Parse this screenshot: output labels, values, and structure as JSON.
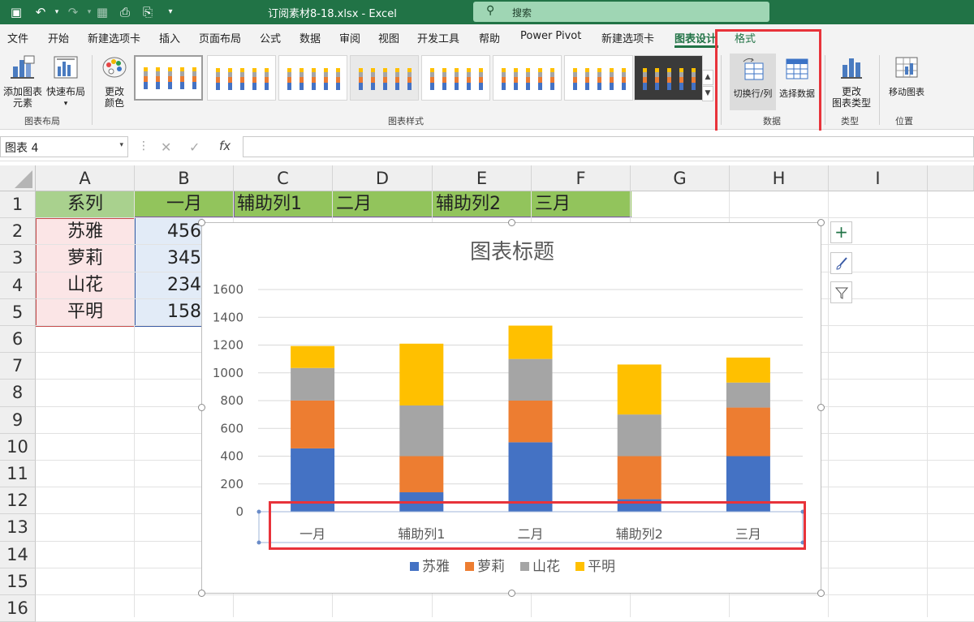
{
  "titlebar": {
    "doc_title": "订阅素材8-18.xlsx  -  Excel",
    "search_placeholder": "搜索",
    "quick_icons": [
      "save-icon",
      "undo-icon",
      "redo-icon",
      "form-icon",
      "print-preview-icon",
      "customize-icon"
    ]
  },
  "menu": {
    "items": [
      "文件",
      "开始",
      "新建选项卡",
      "插入",
      "页面布局",
      "公式",
      "数据",
      "审阅",
      "视图",
      "开发工具",
      "帮助",
      "Power Pivot",
      "新建选项卡",
      "图表设计",
      "格式"
    ],
    "active_index": 13
  },
  "ribbon": {
    "add_element": "添加图表\n元素",
    "quick_layout": "快速布局",
    "change_colors": "更改\n颜色",
    "group_layout": "图表布局",
    "group_styles": "图表样式",
    "switch_row_col": "切换行/列",
    "select_data": "选择数据",
    "group_data": "数据",
    "change_type": "更改\n图表类型",
    "group_type": "类型",
    "move_chart": "移动图表",
    "group_location": "位置"
  },
  "formula_bar": {
    "name_box": "图表 4",
    "cancel_symbol": "✕",
    "enter_symbol": "✓",
    "fx": "fx",
    "value": ""
  },
  "sheet": {
    "columns": [
      "A",
      "B",
      "C",
      "D",
      "E",
      "F",
      "G",
      "H",
      "I"
    ],
    "rows": [
      "1",
      "2",
      "3",
      "4",
      "5",
      "6",
      "7",
      "8",
      "9",
      "10",
      "11",
      "12",
      "13",
      "14",
      "15",
      "16"
    ],
    "header_row": [
      "系列",
      "一月",
      "辅助列1",
      "二月",
      "辅助列2",
      "三月"
    ],
    "names": [
      "苏雅",
      "萝莉",
      "山花",
      "平明"
    ],
    "b_values": [
      "456",
      "345",
      "234",
      "158"
    ],
    "colors": {
      "header_bg": "#92c45c",
      "names_bg": "#fbe5e6",
      "values_bg": "#e2ebf7"
    }
  },
  "chart_data": {
    "type": "bar",
    "stacked": true,
    "title": "图表标题",
    "categories": [
      "一月",
      "辅助列1",
      "二月",
      "辅助列2",
      "三月"
    ],
    "series": [
      {
        "name": "苏雅",
        "color": "#4472c4",
        "values": [
          456,
          140,
          500,
          90,
          400
        ]
      },
      {
        "name": "萝莉",
        "color": "#ed7d31",
        "values": [
          345,
          260,
          300,
          310,
          350
        ]
      },
      {
        "name": "山花",
        "color": "#a5a5a5",
        "values": [
          234,
          365,
          300,
          300,
          180
        ]
      },
      {
        "name": "平明",
        "color": "#ffc000",
        "values": [
          158,
          445,
          240,
          360,
          180
        ]
      }
    ],
    "ylim": [
      0,
      1600
    ],
    "yticks": [
      0,
      200,
      400,
      600,
      800,
      1000,
      1200,
      1400,
      1600
    ],
    "grid": true,
    "legend": "bottom"
  }
}
